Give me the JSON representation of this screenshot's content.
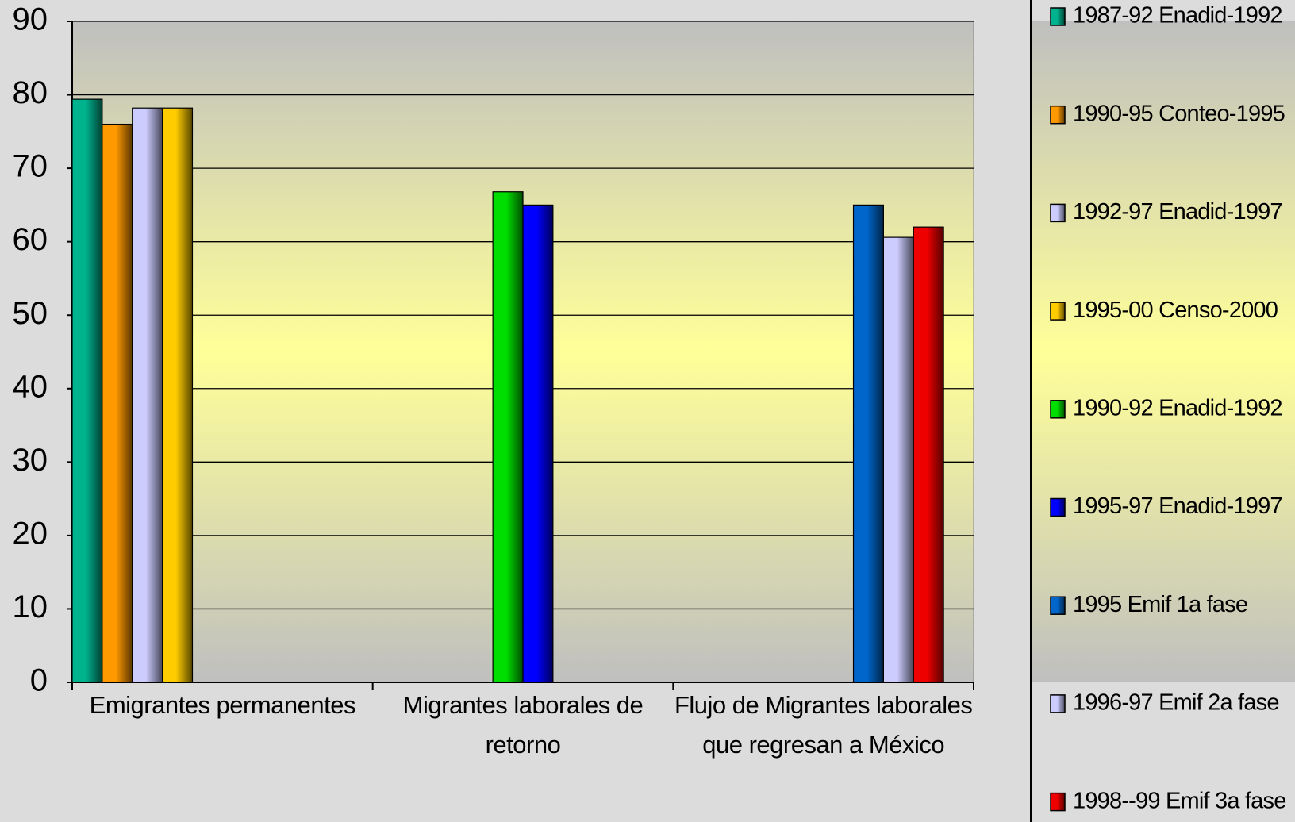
{
  "chart_data": {
    "type": "bar",
    "categories": [
      "Emigrantes permanentes",
      "Migrantes laborales de retorno",
      "Flujo de Migrantes laborales que regresan a México"
    ],
    "series": [
      {
        "name": "1987-92 Enadid-1992",
        "color": "#00b38f",
        "values": [
          79.4,
          null,
          null
        ]
      },
      {
        "name": "1990-95 Conteo-1995",
        "color": "#ff9900",
        "values": [
          76,
          null,
          null
        ]
      },
      {
        "name": "1992-97 Enadid-1997",
        "color": "#ccccff",
        "values": [
          78.2,
          null,
          null
        ]
      },
      {
        "name": "1995-00 Censo-2000",
        "color": "#ffcc00",
        "values": [
          78.2,
          null,
          null
        ]
      },
      {
        "name": "1990-92 Enadid-1992",
        "color": "#00dd00",
        "values": [
          null,
          66.8,
          null
        ]
      },
      {
        "name": "1995-97 Enadid-1997",
        "color": "#0000ff",
        "values": [
          null,
          65,
          null
        ]
      },
      {
        "name": "1995 Emif 1a fase",
        "color": "#0066cc",
        "values": [
          null,
          null,
          65
        ]
      },
      {
        "name": "1996-97 Emif 2a fase",
        "color": "#ccccff",
        "values": [
          null,
          null,
          60.6
        ]
      },
      {
        "name": "1998--99 Emif 3a fase",
        "color": "#ee0000",
        "values": [
          null,
          null,
          62
        ]
      }
    ],
    "ylim": [
      0,
      90
    ],
    "yticks": [
      0,
      10,
      20,
      30,
      40,
      50,
      60,
      70,
      80,
      90
    ],
    "grid": true,
    "legend": "right"
  }
}
